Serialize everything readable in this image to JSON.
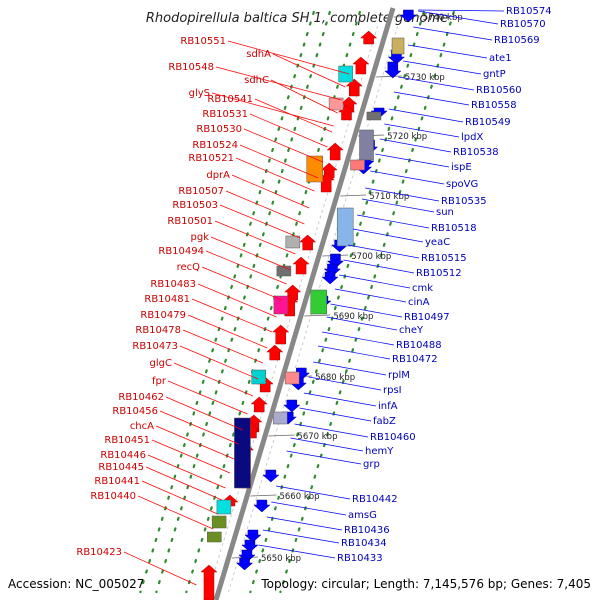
{
  "title": "Rhodopirellula baltica SH 1, complete genome",
  "footer": {
    "accession": "Accession: NC_005027",
    "topology": "Topology: circular; Length: 7,145,576 bp; Genes: 7,405"
  },
  "colors": {
    "forward_label": "#cc0000",
    "reverse_label": "#0000bb",
    "forward_gene": "#ff0000",
    "reverse_gene": "#0000ff",
    "backbone": "#888888",
    "dots": "#2e8b2e"
  },
  "kbp_ticks": [
    "5740 kbp",
    "5730 kbp",
    "5720 kbp",
    "5710 kbp",
    "5700 kbp",
    "5690 kbp",
    "5680 kbp",
    "5670 kbp",
    "5660 kbp",
    "5650 kbp"
  ],
  "left_labels": [
    "RB10551",
    "sdhA",
    "RB10548",
    "sdhC",
    "glyS",
    "RB10541",
    "RB10531",
    "RB10530",
    "RB10524",
    "RB10521",
    "dprA",
    "RB10507",
    "RB10503",
    "RB10501",
    "pgk",
    "RB10494",
    "recQ",
    "RB10483",
    "RB10481",
    "RB10479",
    "RB10478",
    "RB10473",
    "glgC",
    "fpr",
    "RB10462",
    "RB10456",
    "chcA",
    "RB10451",
    "RB10446",
    "RB10445",
    "RB10441",
    "RB10440",
    "RB10423"
  ],
  "right_labels": [
    "RB10574",
    "RB10570",
    "RB10569",
    "ate1",
    "gntP",
    "RB10560",
    "RB10558",
    "RB10549",
    "lpdX",
    "RB10538",
    "ispE",
    "spoVG",
    "RB10535",
    "sun",
    "RB10518",
    "yeaC",
    "RB10515",
    "RB10512",
    "cmk",
    "cinA",
    "RB10497",
    "cheY",
    "RB10488",
    "RB10472",
    "rplM",
    "rpsI",
    "infA",
    "fabZ",
    "RB10460",
    "hemY",
    "grp",
    "RB10442",
    "amsG",
    "RB10436",
    "RB10434",
    "RB10433"
  ]
}
